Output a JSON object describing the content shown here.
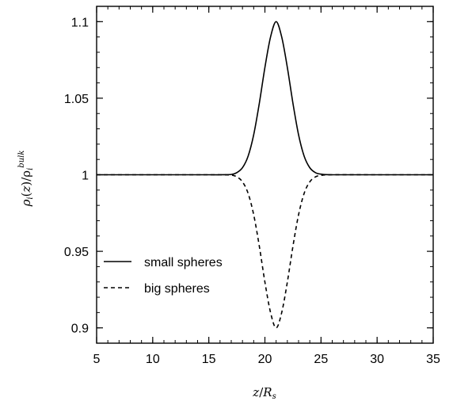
{
  "chart_data": {
    "type": "line",
    "xlabel": "z/R_s",
    "ylabel": "ρ_i(z)/ρ_i^bulk",
    "xlim": [
      5,
      35
    ],
    "ylim": [
      0.89,
      1.11
    ],
    "x_ticks": [
      {
        "value": 5,
        "label": "5"
      },
      {
        "value": 10,
        "label": "10"
      },
      {
        "value": 15,
        "label": "15"
      },
      {
        "value": 20,
        "label": "20"
      },
      {
        "value": 25,
        "label": "25"
      },
      {
        "value": 30,
        "label": "30"
      },
      {
        "value": 35,
        "label": "35"
      }
    ],
    "y_ticks": [
      {
        "value": 0.9,
        "label": "0.9"
      },
      {
        "value": 0.95,
        "label": "0.95"
      },
      {
        "value": 1.0,
        "label": "1"
      },
      {
        "value": 1.05,
        "label": "1.05"
      },
      {
        "value": 1.1,
        "label": "1.1"
      }
    ],
    "x_minor_step": 1,
    "y_minor_step": 0.01,
    "grid": false,
    "legend_position": "lower-left",
    "series": [
      {
        "name": "small spheres",
        "style": "solid",
        "color": "#000000",
        "x": [
          5,
          10,
          15,
          16,
          17,
          17.5,
          18,
          18.5,
          19,
          19.5,
          20,
          20.5,
          21,
          21.5,
          22,
          22.5,
          23,
          23.5,
          24,
          24.5,
          25,
          26,
          30,
          35
        ],
        "y": [
          1.0,
          1.0,
          1.0,
          1.0,
          1.0002,
          1.0014,
          1.0046,
          1.0121,
          1.0261,
          1.0466,
          1.0701,
          1.0899,
          1.1,
          1.0899,
          1.0701,
          1.0466,
          1.0261,
          1.0121,
          1.0046,
          1.0014,
          1.0004,
          1.0,
          1.0,
          1.0
        ]
      },
      {
        "name": "big spheres",
        "style": "dashed",
        "color": "#000000",
        "x": [
          5,
          10,
          15,
          16,
          17,
          17.5,
          18,
          18.5,
          19,
          19.5,
          20,
          20.5,
          21,
          21.5,
          22,
          22.5,
          23,
          23.5,
          24,
          24.5,
          25,
          26,
          30,
          35
        ],
        "y": [
          1.0,
          1.0,
          1.0,
          1.0,
          0.9998,
          0.9986,
          0.9954,
          0.9879,
          0.9739,
          0.9534,
          0.9299,
          0.9101,
          0.9,
          0.9101,
          0.9299,
          0.9534,
          0.9739,
          0.9879,
          0.9954,
          0.9986,
          0.9996,
          1.0,
          1.0,
          1.0
        ]
      }
    ]
  }
}
